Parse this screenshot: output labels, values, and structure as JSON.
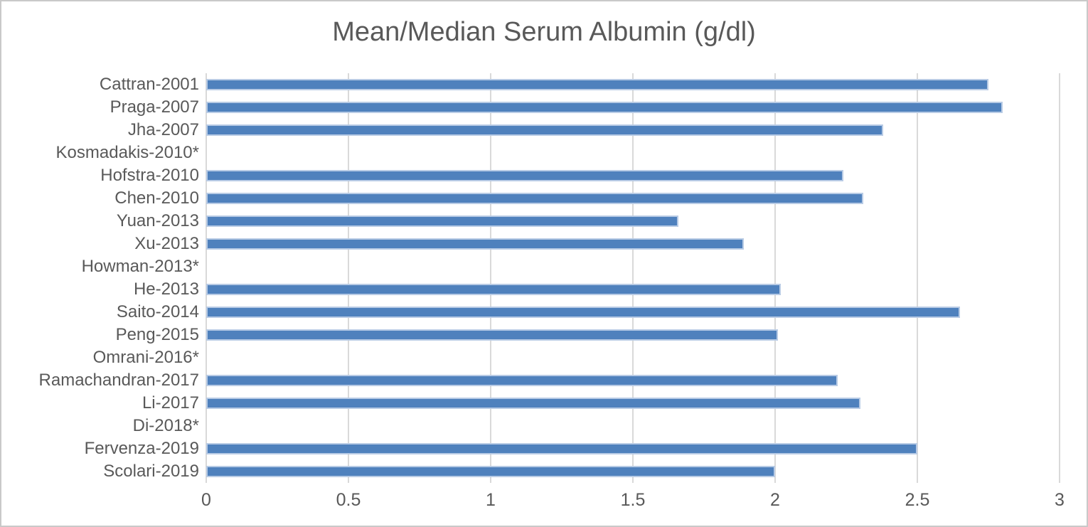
{
  "colors": {
    "bar": "#4f81bd",
    "bar_border": "#b8cbe5",
    "grid": "#d9d9d9",
    "text": "#595959",
    "frame_border": "#c9c9c9"
  },
  "chart_data": {
    "type": "bar",
    "orientation": "horizontal",
    "title": "Mean/Median Serum Albumin (g/dl)",
    "xlabel": "",
    "ylabel": "",
    "categories": [
      "Cattran-2001",
      "Praga-2007",
      "Jha-2007",
      "Kosmadakis-2010*",
      "Hofstra-2010",
      "Chen-2010",
      "Yuan-2013",
      "Xu-2013",
      "Howman-2013*",
      "He-2013",
      "Saito-2014",
      "Peng-2015",
      "Omrani-2016*",
      "Ramachandran-2017",
      "Li-2017",
      "Di-2018*",
      "Fervenza-2019",
      "Scolari-2019"
    ],
    "values": [
      2.75,
      2.8,
      2.38,
      null,
      2.24,
      2.31,
      1.66,
      1.89,
      null,
      2.02,
      2.65,
      2.01,
      null,
      2.22,
      2.3,
      null,
      2.5,
      2.0
    ],
    "xlim": [
      0,
      3
    ],
    "x_ticks": [
      0,
      0.5,
      1,
      1.5,
      2,
      2.5,
      3
    ],
    "x_tick_labels": [
      "0",
      "0.5",
      "1",
      "1.5",
      "2",
      "2.5",
      "3"
    ],
    "grid": true,
    "legend": false
  }
}
